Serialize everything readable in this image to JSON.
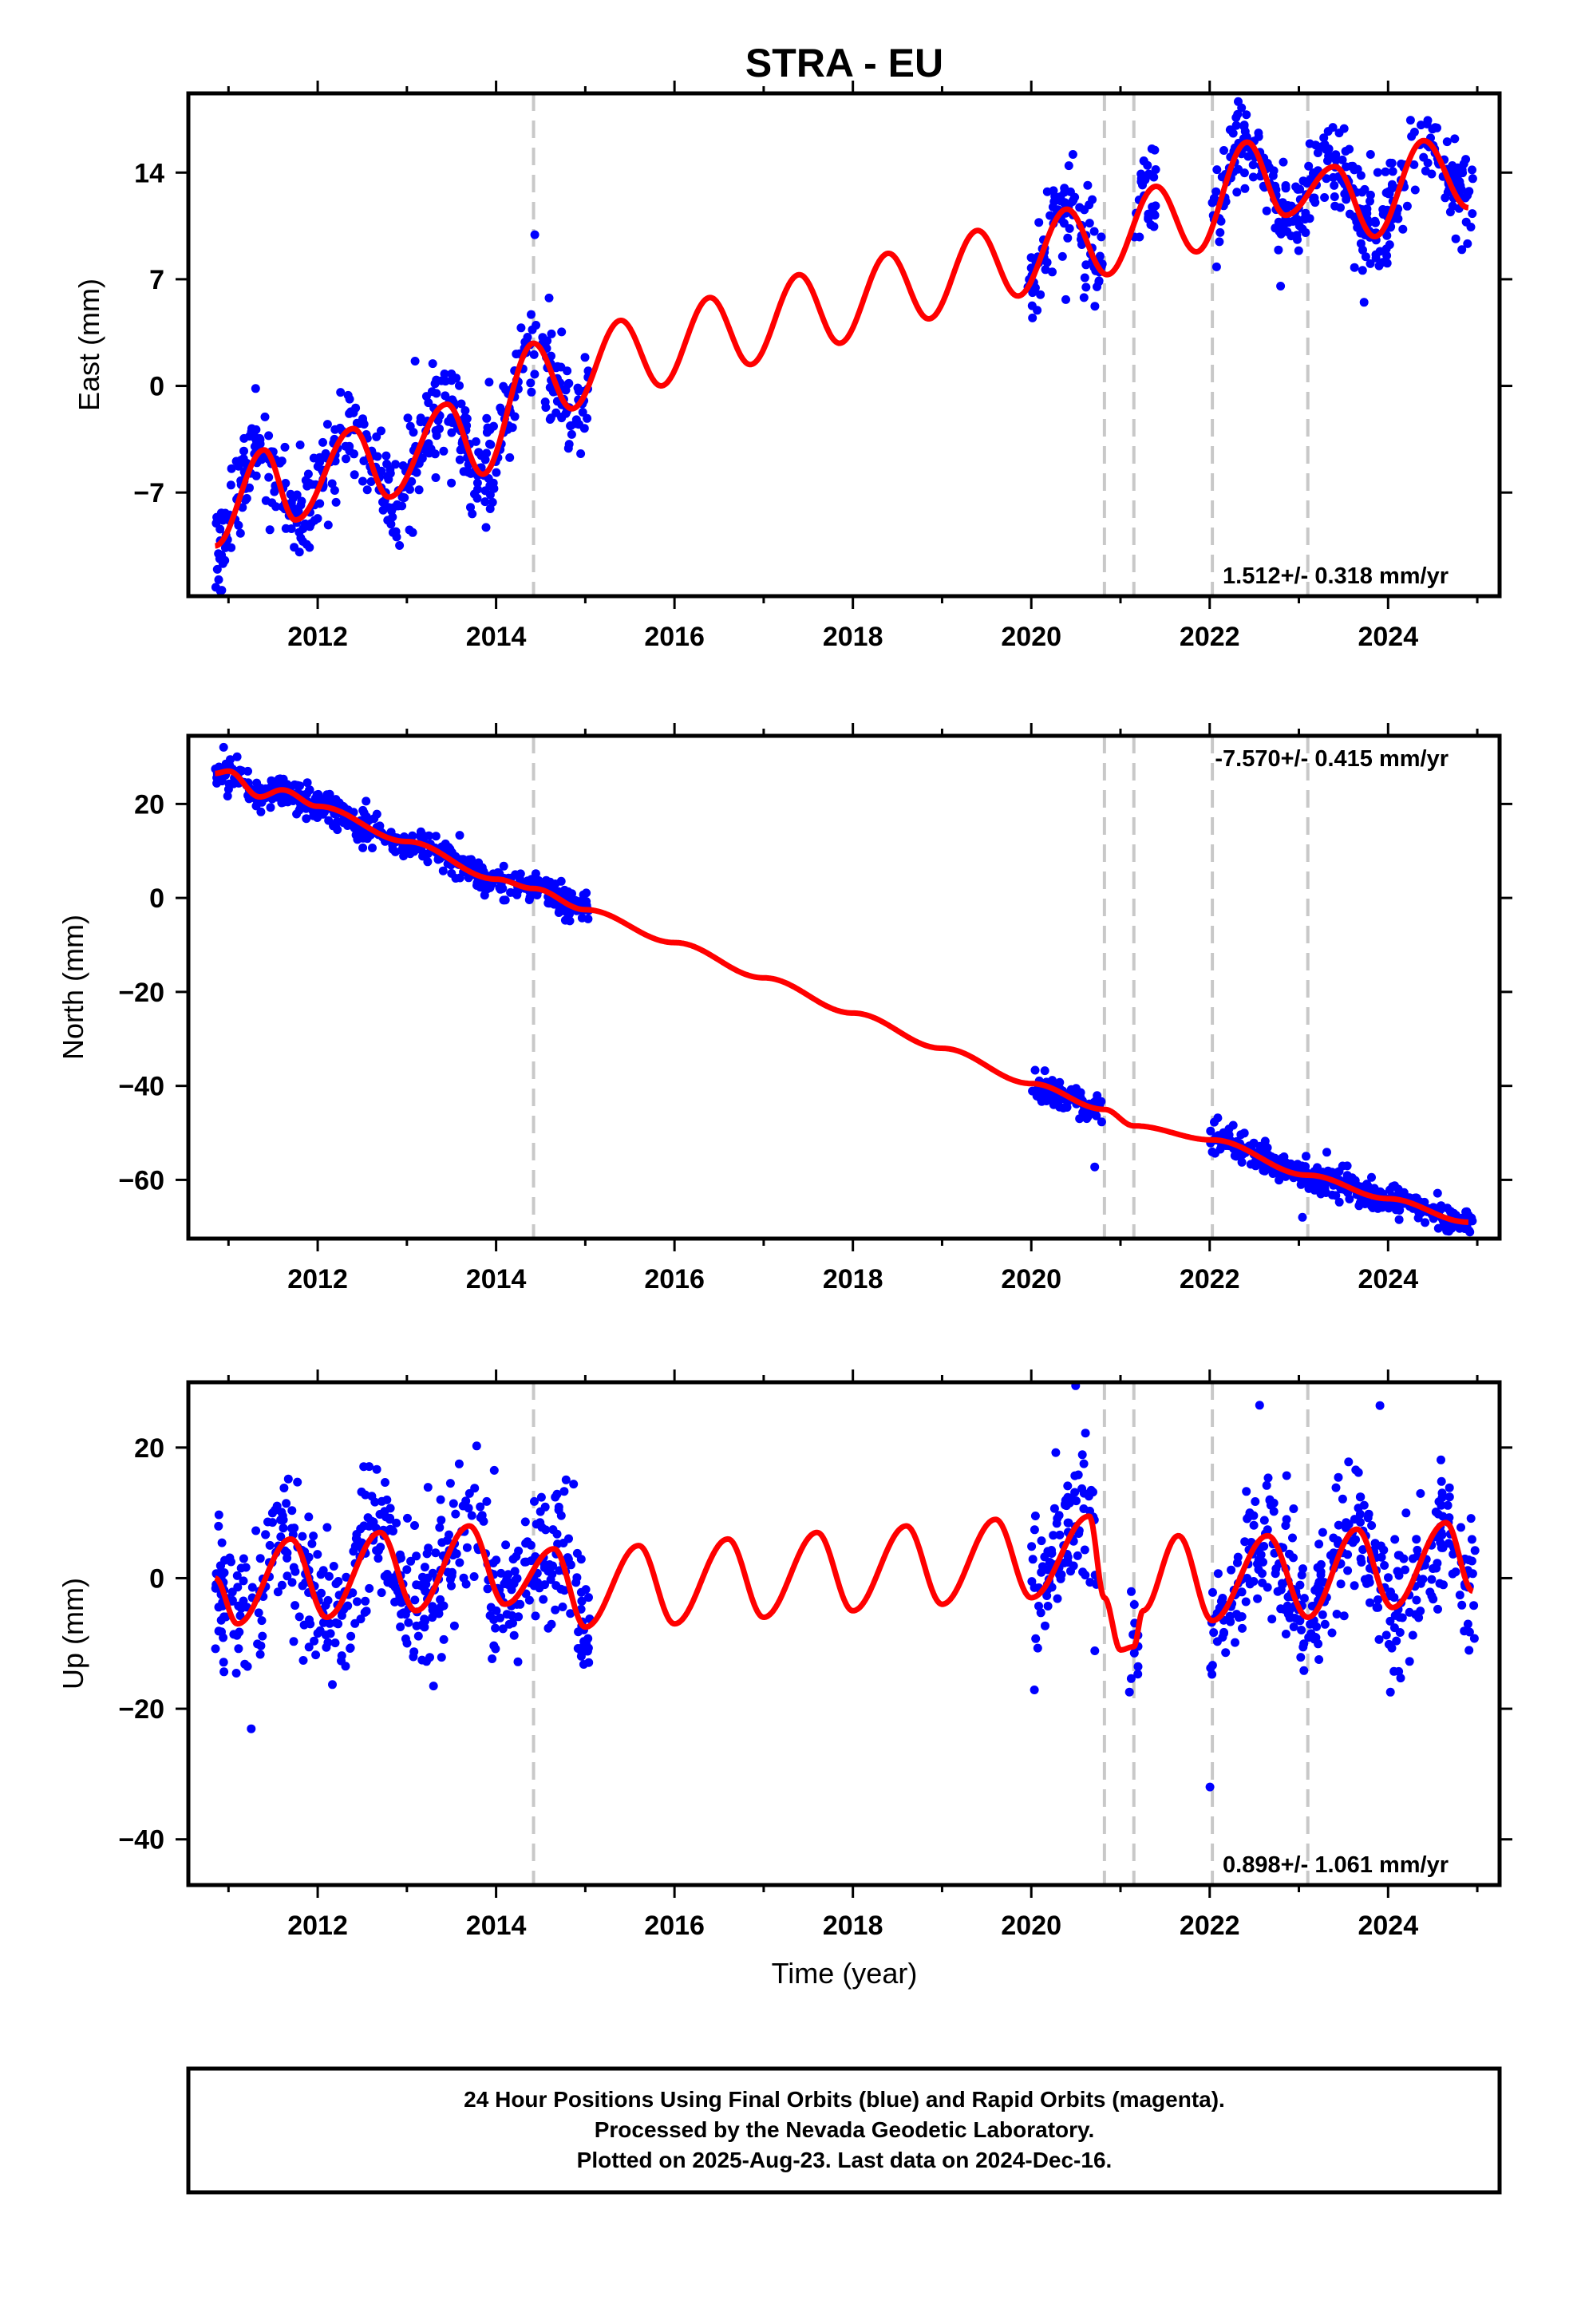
{
  "title": "STRA - EU",
  "xlabel": "Time (year)",
  "footer": {
    "line1": "24 Hour Positions Using Final Orbits (blue) and Rapid Orbits (magenta).",
    "line2": "Processed by the Nevada Geodetic Laboratory.",
    "line3": "Plotted on 2025-Aug-23. Last data on 2024-Dec-16."
  },
  "colors": {
    "data": "#0000ff",
    "model": "#ff0000",
    "breaks": "#c8c8c8",
    "axes": "#000000"
  },
  "chart_data": [
    {
      "type": "scatter",
      "component": "east",
      "ylabel": "East (mm)",
      "xlim": [
        2010.55,
        2025.25
      ],
      "ylim": [
        -13.8,
        19.2
      ],
      "yticks": [
        -7,
        0,
        7,
        14
      ],
      "xticks": [
        2012,
        2014,
        2016,
        2018,
        2020,
        2022,
        2024
      ],
      "rate_label": "1.512+/- 0.318 mm/yr",
      "rate_position": "bottom-right",
      "breaks": [
        2014.42,
        2020.82,
        2021.15,
        2022.03,
        2023.1
      ],
      "data_spans": [
        [
          2010.85,
          2015.05
        ],
        [
          2019.95,
          2020.8
        ],
        [
          2021.15,
          2021.4
        ],
        [
          2022.0,
          2024.95
        ]
      ],
      "model_key_points": [
        {
          "x": 2010.85,
          "y": -10.5
        },
        {
          "x": 2011.4,
          "y": -4.2
        },
        {
          "x": 2011.75,
          "y": -8.8
        },
        {
          "x": 2012.4,
          "y": -2.8
        },
        {
          "x": 2012.8,
          "y": -7.3
        },
        {
          "x": 2013.45,
          "y": -1.2
        },
        {
          "x": 2013.85,
          "y": -5.8
        },
        {
          "x": 2014.42,
          "y": 2.8
        },
        {
          "x": 2014.85,
          "y": -1.5
        },
        {
          "x": 2015.4,
          "y": 4.3
        },
        {
          "x": 2015.85,
          "y": 0.0
        },
        {
          "x": 2016.4,
          "y": 5.8
        },
        {
          "x": 2016.85,
          "y": 1.4
        },
        {
          "x": 2017.4,
          "y": 7.3
        },
        {
          "x": 2017.85,
          "y": 2.8
        },
        {
          "x": 2018.4,
          "y": 8.7
        },
        {
          "x": 2018.85,
          "y": 4.4
        },
        {
          "x": 2019.4,
          "y": 10.2
        },
        {
          "x": 2019.85,
          "y": 5.9
        },
        {
          "x": 2020.4,
          "y": 11.6
        },
        {
          "x": 2020.85,
          "y": 7.3
        },
        {
          "x": 2021.4,
          "y": 13.1
        },
        {
          "x": 2021.85,
          "y": 8.8
        },
        {
          "x": 2022.42,
          "y": 16.0
        },
        {
          "x": 2022.85,
          "y": 11.2
        },
        {
          "x": 2023.4,
          "y": 14.4
        },
        {
          "x": 2023.85,
          "y": 9.8
        },
        {
          "x": 2024.4,
          "y": 16.1
        },
        {
          "x": 2024.9,
          "y": 11.7
        }
      ],
      "scatter_sigma_mm": 1.5
    },
    {
      "type": "scatter",
      "component": "north",
      "ylabel": "North (mm)",
      "xlim": [
        2010.55,
        2025.25
      ],
      "ylim": [
        -72.5,
        34.5
      ],
      "yticks": [
        -60,
        -40,
        -20,
        0,
        20
      ],
      "xticks": [
        2012,
        2014,
        2016,
        2018,
        2020,
        2022,
        2024
      ],
      "rate_label": "-7.570+/- 0.415 mm/yr",
      "rate_position": "top-right",
      "breaks": [
        2014.42,
        2020.82,
        2021.15,
        2022.03,
        2023.1
      ],
      "data_spans": [
        [
          2010.85,
          2015.05
        ],
        [
          2020.0,
          2020.8
        ],
        [
          2022.0,
          2024.95
        ]
      ],
      "model_key_points": [
        {
          "x": 2010.85,
          "y": 26.5
        },
        {
          "x": 2011.0,
          "y": 27.0
        },
        {
          "x": 2011.35,
          "y": 21.5
        },
        {
          "x": 2011.6,
          "y": 23.0
        },
        {
          "x": 2012.0,
          "y": 19.5
        },
        {
          "x": 2013.0,
          "y": 12.0
        },
        {
          "x": 2014.0,
          "y": 4.0
        },
        {
          "x": 2014.42,
          "y": 2.0
        },
        {
          "x": 2015.0,
          "y": -2.5
        },
        {
          "x": 2016.0,
          "y": -9.5
        },
        {
          "x": 2017.0,
          "y": -17.0
        },
        {
          "x": 2018.0,
          "y": -24.5
        },
        {
          "x": 2019.0,
          "y": -32.0
        },
        {
          "x": 2020.0,
          "y": -39.5
        },
        {
          "x": 2020.82,
          "y": -45.0
        },
        {
          "x": 2021.15,
          "y": -48.5
        },
        {
          "x": 2022.03,
          "y": -51.5
        },
        {
          "x": 2023.1,
          "y": -59.0
        },
        {
          "x": 2024.0,
          "y": -64.0
        },
        {
          "x": 2024.9,
          "y": -69.0
        }
      ],
      "scatter_sigma_mm": 1.6
    },
    {
      "type": "scatter",
      "component": "up",
      "ylabel": "Up (mm)",
      "xlim": [
        2010.55,
        2025.25
      ],
      "ylim": [
        -47.0,
        30.0
      ],
      "yticks": [
        -40,
        -20,
        0,
        20
      ],
      "xticks": [
        2012,
        2014,
        2016,
        2018,
        2020,
        2022,
        2024
      ],
      "rate_label": "0.898+/- 1.061 mm/yr",
      "rate_position": "bottom-right",
      "breaks": [
        2014.42,
        2020.82,
        2021.15,
        2022.03,
        2023.1
      ],
      "data_spans": [
        [
          2010.85,
          2015.05
        ],
        [
          2020.0,
          2020.8
        ],
        [
          2021.1,
          2021.2
        ],
        [
          2022.0,
          2024.98
        ]
      ],
      "model_key_points": [
        {
          "x": 2010.85,
          "y": 0.0
        },
        {
          "x": 2011.1,
          "y": -7.0
        },
        {
          "x": 2011.7,
          "y": 6.0
        },
        {
          "x": 2012.1,
          "y": -6.0
        },
        {
          "x": 2012.7,
          "y": 7.0
        },
        {
          "x": 2013.1,
          "y": -5.0
        },
        {
          "x": 2013.7,
          "y": 8.0
        },
        {
          "x": 2014.1,
          "y": -4.0
        },
        {
          "x": 2014.65,
          "y": 4.5
        },
        {
          "x": 2015.0,
          "y": -7.5
        },
        {
          "x": 2015.6,
          "y": 5.0
        },
        {
          "x": 2016.0,
          "y": -7.0
        },
        {
          "x": 2016.6,
          "y": 6.0
        },
        {
          "x": 2017.0,
          "y": -6.0
        },
        {
          "x": 2017.6,
          "y": 7.0
        },
        {
          "x": 2018.0,
          "y": -5.0
        },
        {
          "x": 2018.6,
          "y": 8.0
        },
        {
          "x": 2019.0,
          "y": -4.0
        },
        {
          "x": 2019.6,
          "y": 9.0
        },
        {
          "x": 2020.0,
          "y": -3.0
        },
        {
          "x": 2020.65,
          "y": 9.5
        },
        {
          "x": 2020.82,
          "y": -3.0
        },
        {
          "x": 2021.0,
          "y": -11.0
        },
        {
          "x": 2021.15,
          "y": -10.5
        },
        {
          "x": 2021.25,
          "y": -5.0
        },
        {
          "x": 2021.65,
          "y": 6.5
        },
        {
          "x": 2022.03,
          "y": -6.5
        },
        {
          "x": 2022.65,
          "y": 6.5
        },
        {
          "x": 2023.1,
          "y": -6.0
        },
        {
          "x": 2023.65,
          "y": 7.5
        },
        {
          "x": 2024.05,
          "y": -4.5
        },
        {
          "x": 2024.65,
          "y": 8.5
        },
        {
          "x": 2024.95,
          "y": -2.0
        }
      ],
      "scatter_sigma_mm": 5.5
    }
  ]
}
